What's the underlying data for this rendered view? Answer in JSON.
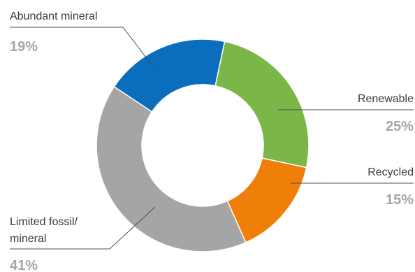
{
  "chart_data": {
    "type": "pie",
    "variant": "donut",
    "title": "",
    "categories": [
      "Abundant mineral",
      "Renewable",
      "Recycled",
      "Limited fossil/ mineral"
    ],
    "values": [
      19,
      25,
      15,
      41
    ],
    "value_labels": [
      "19%",
      "25%",
      "15%",
      "41%"
    ],
    "colors": [
      "#0a6ebd",
      "#7ab648",
      "#f07f09",
      "#a5a5a5"
    ],
    "legend": "none",
    "labels": {
      "abundant_mineral": {
        "name": "Abundant mineral",
        "value": "19%"
      },
      "renewable": {
        "name": "Renewable",
        "value": "25%"
      },
      "recycled": {
        "name": "Recycled",
        "value": "15%"
      },
      "limited_fossil": {
        "name_line1": "Limited fossil/",
        "name_line2": "mineral",
        "value": "41%"
      }
    }
  }
}
